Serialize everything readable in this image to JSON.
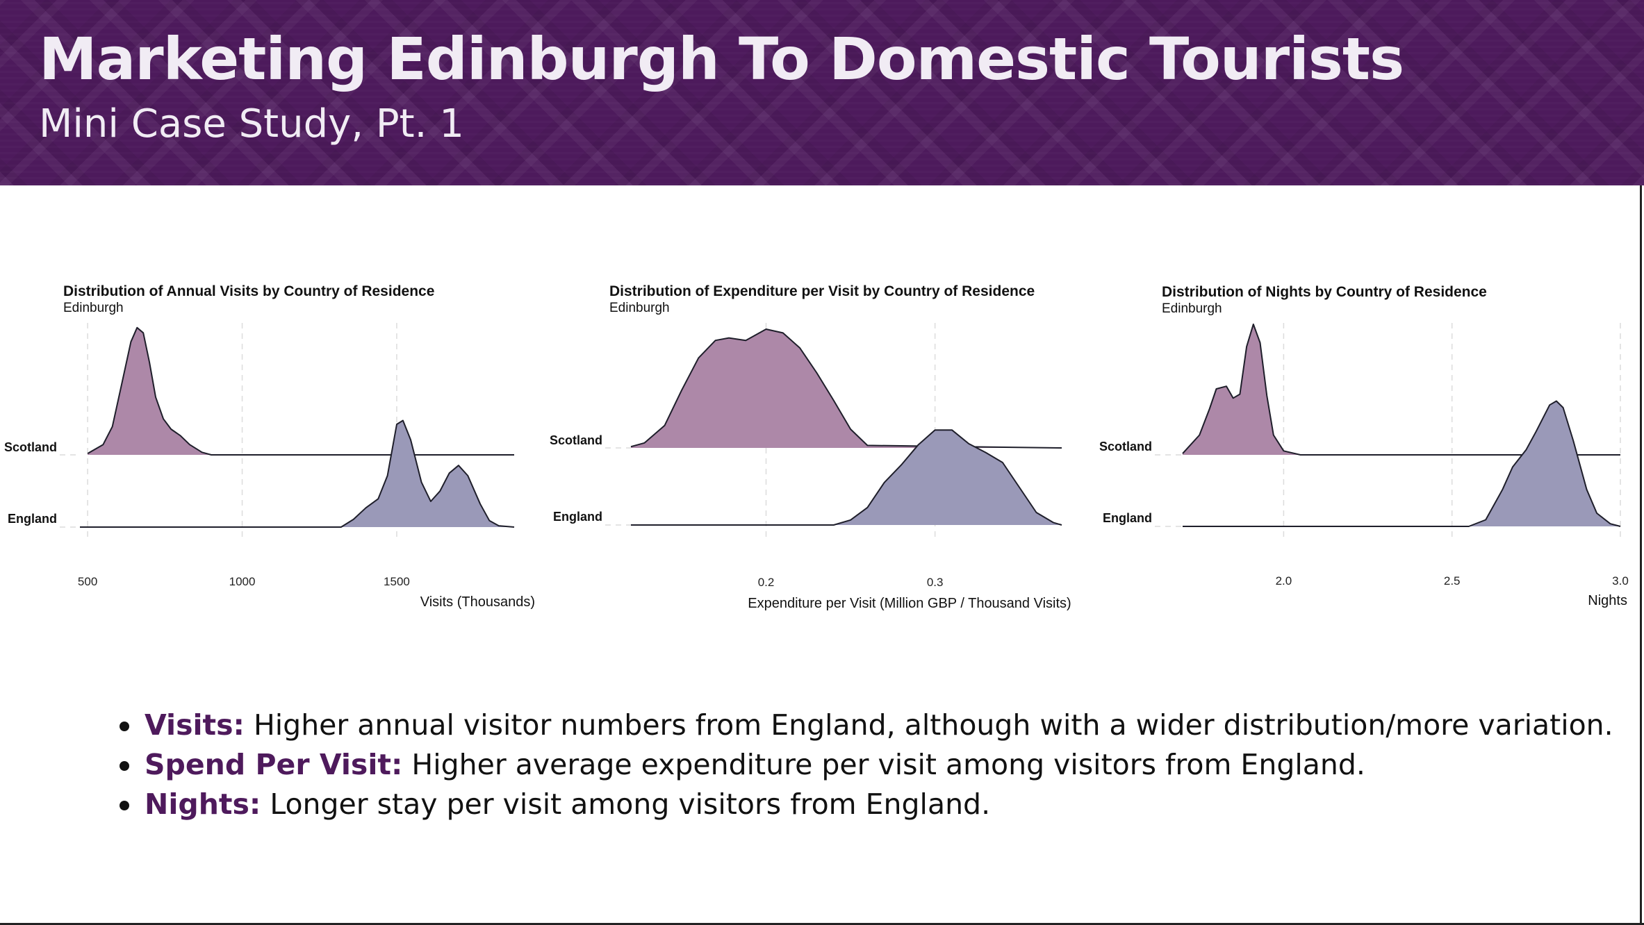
{
  "header": {
    "title": "Marketing Edinburgh To Domestic Tourists",
    "subtitle": "Mini Case Study, Pt. 1"
  },
  "colors": {
    "header_bg": "#4d1a5c",
    "scotland_fill": "#ad88a8",
    "england_fill": "#9a99b8",
    "accent_text": "#4e1a5c"
  },
  "chart_data": [
    {
      "type": "ridgeline",
      "title": "Distribution of Annual Visits by Country of Residence",
      "subtitle": "Edinburgh",
      "xlabel": "Visits (Thousands)",
      "xlim": [
        475,
        1880
      ],
      "xticks": [
        500,
        1000,
        1500
      ],
      "tick_labels": [
        "500",
        "1000",
        "1500"
      ],
      "grid": true,
      "series": [
        {
          "name": "Scotland",
          "x": [
            500,
            550,
            580,
            610,
            640,
            660,
            680,
            700,
            720,
            745,
            770,
            800,
            830,
            870,
            900,
            1000,
            1200,
            1880
          ],
          "density": [
            0.01,
            0.08,
            0.22,
            0.55,
            0.88,
            0.99,
            0.95,
            0.72,
            0.45,
            0.28,
            0.2,
            0.15,
            0.08,
            0.02,
            0,
            0,
            0,
            0
          ]
        },
        {
          "name": "England",
          "x": [
            475,
            1000,
            1320,
            1360,
            1400,
            1440,
            1470,
            1500,
            1520,
            1545,
            1580,
            1610,
            1640,
            1670,
            1700,
            1730,
            1770,
            1800,
            1830,
            1880
          ],
          "density": [
            0,
            0,
            0,
            0.06,
            0.15,
            0.22,
            0.4,
            0.8,
            0.83,
            0.68,
            0.35,
            0.2,
            0.28,
            0.42,
            0.48,
            0.4,
            0.18,
            0.05,
            0.01,
            0
          ]
        }
      ]
    },
    {
      "type": "ridgeline",
      "title": "Distribution of Expenditure per Visit by Country of Residence",
      "subtitle": "Edinburgh",
      "xlabel": "Expenditure per Visit (Million GBP / Thousand Visits)",
      "xlim": [
        0.12,
        0.375
      ],
      "xticks": [
        0.2,
        0.3
      ],
      "tick_labels": [
        "0.2",
        "0.3"
      ],
      "grid": true,
      "series": [
        {
          "name": "Scotland",
          "x": [
            0.12,
            0.128,
            0.14,
            0.15,
            0.16,
            0.17,
            0.178,
            0.188,
            0.2,
            0.21,
            0.22,
            0.23,
            0.24,
            0.25,
            0.26,
            0.375
          ],
          "density": [
            0.01,
            0.04,
            0.18,
            0.46,
            0.72,
            0.86,
            0.88,
            0.86,
            0.95,
            0.92,
            0.8,
            0.6,
            0.38,
            0.15,
            0.02,
            0
          ]
        },
        {
          "name": "England",
          "x": [
            0.12,
            0.24,
            0.25,
            0.26,
            0.27,
            0.28,
            0.29,
            0.3,
            0.31,
            0.32,
            0.33,
            0.34,
            0.35,
            0.36,
            0.37,
            0.375
          ],
          "density": [
            0,
            0,
            0.04,
            0.14,
            0.34,
            0.48,
            0.64,
            0.76,
            0.76,
            0.65,
            0.58,
            0.5,
            0.3,
            0.1,
            0.02,
            0
          ]
        }
      ]
    },
    {
      "type": "ridgeline",
      "title": "Distribution of Nights by Country of Residence",
      "subtitle": "Edinburgh",
      "xlabel": "Nights",
      "xlim": [
        1.7,
        3.0
      ],
      "xticks": [
        2.0,
        2.5,
        3.0
      ],
      "tick_labels": [
        "2.0",
        "2.5",
        "3.0"
      ],
      "grid": true,
      "series": [
        {
          "name": "Scotland",
          "x": [
            1.7,
            1.75,
            1.78,
            1.8,
            1.83,
            1.85,
            1.87,
            1.89,
            1.91,
            1.93,
            1.95,
            1.97,
            2.0,
            2.05,
            3.0
          ],
          "density": [
            0.01,
            0.15,
            0.35,
            0.5,
            0.52,
            0.43,
            0.46,
            0.82,
            0.99,
            0.85,
            0.45,
            0.15,
            0.03,
            0,
            0
          ]
        },
        {
          "name": "England",
          "x": [
            1.7,
            2.55,
            2.6,
            2.65,
            2.68,
            2.72,
            2.75,
            2.79,
            2.81,
            2.83,
            2.86,
            2.9,
            2.93,
            2.97,
            3.0
          ],
          "density": [
            0,
            0,
            0.05,
            0.28,
            0.45,
            0.58,
            0.72,
            0.92,
            0.95,
            0.9,
            0.65,
            0.28,
            0.1,
            0.02,
            0
          ]
        }
      ]
    }
  ],
  "bullets": [
    {
      "key": "Visits:",
      "text": " Higher annual visitor numbers from England, although with a wider distribution/more variation."
    },
    {
      "key": "Spend Per Visit:",
      "text": " Higher average expenditure per visit among visitors from England."
    },
    {
      "key": "Nights:",
      "text": " Longer stay per visit among visitors from England."
    }
  ]
}
